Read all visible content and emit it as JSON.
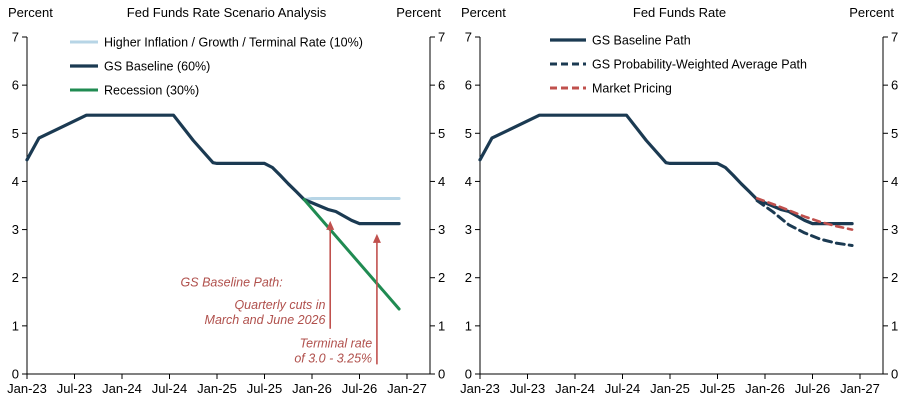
{
  "chart_data": [
    {
      "type": "line",
      "title": "Fed Funds Rate Scenario Analysis",
      "unit_left": "Percent",
      "unit_right": "Percent",
      "x_tick_labels": [
        "Jan-23",
        "Jul-23",
        "Jan-24",
        "Jul-24",
        "Jan-25",
        "Jul-25",
        "Jan-26",
        "Jul-26",
        "Jan-27"
      ],
      "x_tick_months": [
        0,
        6,
        12,
        18,
        24,
        30,
        36,
        42,
        48
      ],
      "y_ticks": [
        0,
        1,
        2,
        3,
        4,
        5,
        6,
        7
      ],
      "ylim": [
        0,
        7
      ],
      "grid": false,
      "legend_position": "top-left-inside",
      "series": [
        {
          "name": "Higher Inflation / Growth / Terminal Rate (10%)",
          "color": "#B7D5E6",
          "dash": "none",
          "width": 3,
          "points": [
            [
              35,
              3.625
            ],
            [
              36,
              3.645
            ],
            [
              47,
              3.645
            ]
          ]
        },
        {
          "name": "GS Baseline (60%)",
          "color": "#1B3A52",
          "dash": "none",
          "width": 3.2,
          "points": [
            [
              0,
              4.45
            ],
            [
              1.5,
              4.9
            ],
            [
              7.5,
              5.375
            ],
            [
              18.5,
              5.375
            ],
            [
              21,
              4.85
            ],
            [
              23.5,
              4.39
            ],
            [
              24,
              4.375
            ],
            [
              30,
              4.375
            ],
            [
              31,
              4.29
            ],
            [
              32,
              4.125
            ],
            [
              33,
              3.95
            ],
            [
              34,
              3.79
            ],
            [
              35,
              3.625
            ],
            [
              38,
              3.42
            ],
            [
              39,
              3.375
            ],
            [
              41,
              3.19
            ],
            [
              42,
              3.125
            ],
            [
              47,
              3.125
            ]
          ]
        },
        {
          "name": "Recession (30%)",
          "color": "#208B52",
          "dash": "none",
          "width": 3,
          "points": [
            [
              35,
              3.625
            ],
            [
              47,
              1.35
            ]
          ]
        }
      ],
      "annotation_color": "#B0504C",
      "arrow_color": "#C0504D",
      "annotations": [
        {
          "lines": [
            "GS Baseline Path:"
          ],
          "anchor_month": 32.3,
          "anchor_value": 1.82
        },
        {
          "lines": [
            "Quarterly cuts in",
            "March and June 2026"
          ],
          "anchor_month": 37.7,
          "anchor_value": 1.35
        },
        {
          "lines": [
            "Terminal rate",
            "of 3.0 - 3.25%"
          ],
          "anchor_month": 43.6,
          "anchor_value": 0.55
        }
      ],
      "arrows": [
        {
          "x_month": 38.3,
          "value_from": 0.94,
          "value_to": 3.18
        },
        {
          "x_month": 44.2,
          "value_from": 0.2,
          "value_to": 2.91
        }
      ]
    },
    {
      "type": "line",
      "title": "Fed Funds Rate",
      "unit_left": "Percent",
      "unit_right": "Percent",
      "x_tick_labels": [
        "Jan-23",
        "Jul-23",
        "Jan-24",
        "Jul-24",
        "Jan-25",
        "Jul-25",
        "Jan-26",
        "Jul-26",
        "Jan-27"
      ],
      "x_tick_months": [
        0,
        6,
        12,
        18,
        24,
        30,
        36,
        42,
        48
      ],
      "y_ticks": [
        0,
        1,
        2,
        3,
        4,
        5,
        6,
        7
      ],
      "ylim": [
        0,
        7
      ],
      "grid": false,
      "legend_position": "top-left-inside",
      "series": [
        {
          "name": "GS Baseline Path",
          "color": "#1B3A52",
          "dash": "none",
          "width": 3.2,
          "points": [
            [
              0,
              4.45
            ],
            [
              1.5,
              4.9
            ],
            [
              7.5,
              5.375
            ],
            [
              18.5,
              5.375
            ],
            [
              21,
              4.85
            ],
            [
              23.5,
              4.39
            ],
            [
              24,
              4.375
            ],
            [
              30,
              4.375
            ],
            [
              31,
              4.29
            ],
            [
              32,
              4.125
            ],
            [
              33,
              3.95
            ],
            [
              34,
              3.79
            ],
            [
              35,
              3.625
            ],
            [
              38,
              3.42
            ],
            [
              39,
              3.375
            ],
            [
              41,
              3.19
            ],
            [
              42,
              3.125
            ],
            [
              47,
              3.125
            ]
          ]
        },
        {
          "name": "GS Probability-Weighted Average Path",
          "color": "#1B3A52",
          "dash": "8 5",
          "width": 3,
          "points": [
            [
              35,
              3.6
            ],
            [
              37,
              3.37
            ],
            [
              39,
              3.1
            ],
            [
              41,
              2.93
            ],
            [
              43,
              2.8
            ],
            [
              45,
              2.72
            ],
            [
              47,
              2.67
            ]
          ]
        },
        {
          "name": "Market Pricing",
          "color": "#C0504D",
          "dash": "7 5",
          "width": 2.6,
          "points": [
            [
              35,
              3.65
            ],
            [
              37,
              3.53
            ],
            [
              39,
              3.4
            ],
            [
              41,
              3.27
            ],
            [
              43,
              3.16
            ],
            [
              45,
              3.07
            ],
            [
              47,
              3.0
            ]
          ]
        }
      ],
      "annotation_color": "#B0504C",
      "arrow_color": "#C0504D",
      "annotations": [],
      "arrows": []
    }
  ]
}
